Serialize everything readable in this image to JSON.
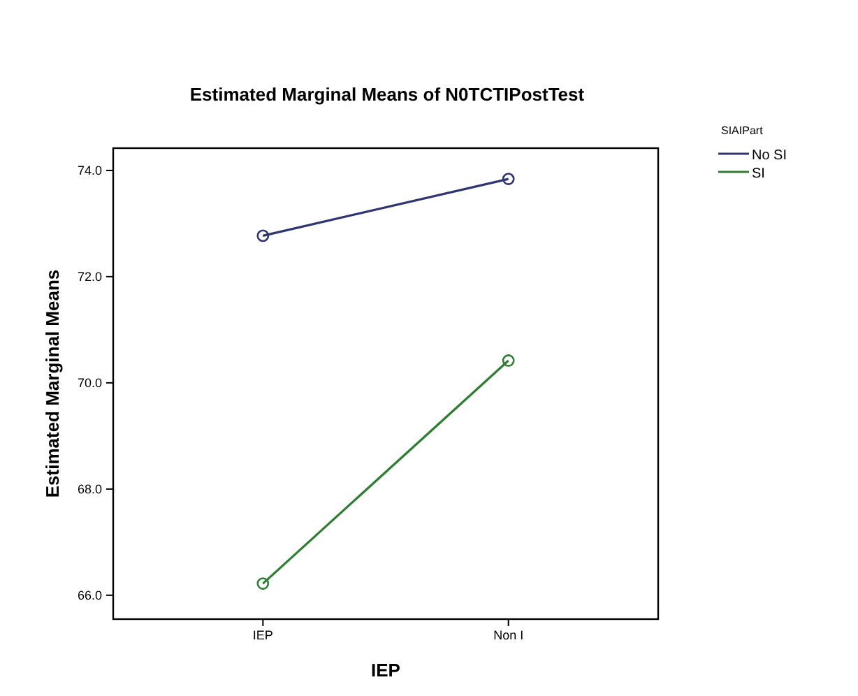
{
  "chart_data": {
    "type": "line",
    "title": "Estimated Marginal Means of N0TCTIPostTest",
    "xlabel": "IEP",
    "ylabel": "Estimated Marginal Means",
    "legend_title": "SIAIPart",
    "categories": [
      "IEP",
      "Non I"
    ],
    "series": [
      {
        "name": "No SI",
        "color": "#2e3570",
        "values": [
          72.77,
          73.84
        ]
      },
      {
        "name": "SI",
        "color": "#2e7d32",
        "values": [
          66.22,
          70.42
        ]
      }
    ],
    "ylim": [
      65.55,
      74.42
    ],
    "yticks": [
      {
        "value": 66,
        "label": "66.0"
      },
      {
        "value": 68,
        "label": "68.0"
      },
      {
        "value": 70,
        "label": "70.0"
      },
      {
        "value": 72,
        "label": "72.0"
      },
      {
        "value": 74,
        "label": "74.0"
      }
    ],
    "grid": false,
    "legend": "top right",
    "marker": "circle",
    "line_style": "solid"
  }
}
